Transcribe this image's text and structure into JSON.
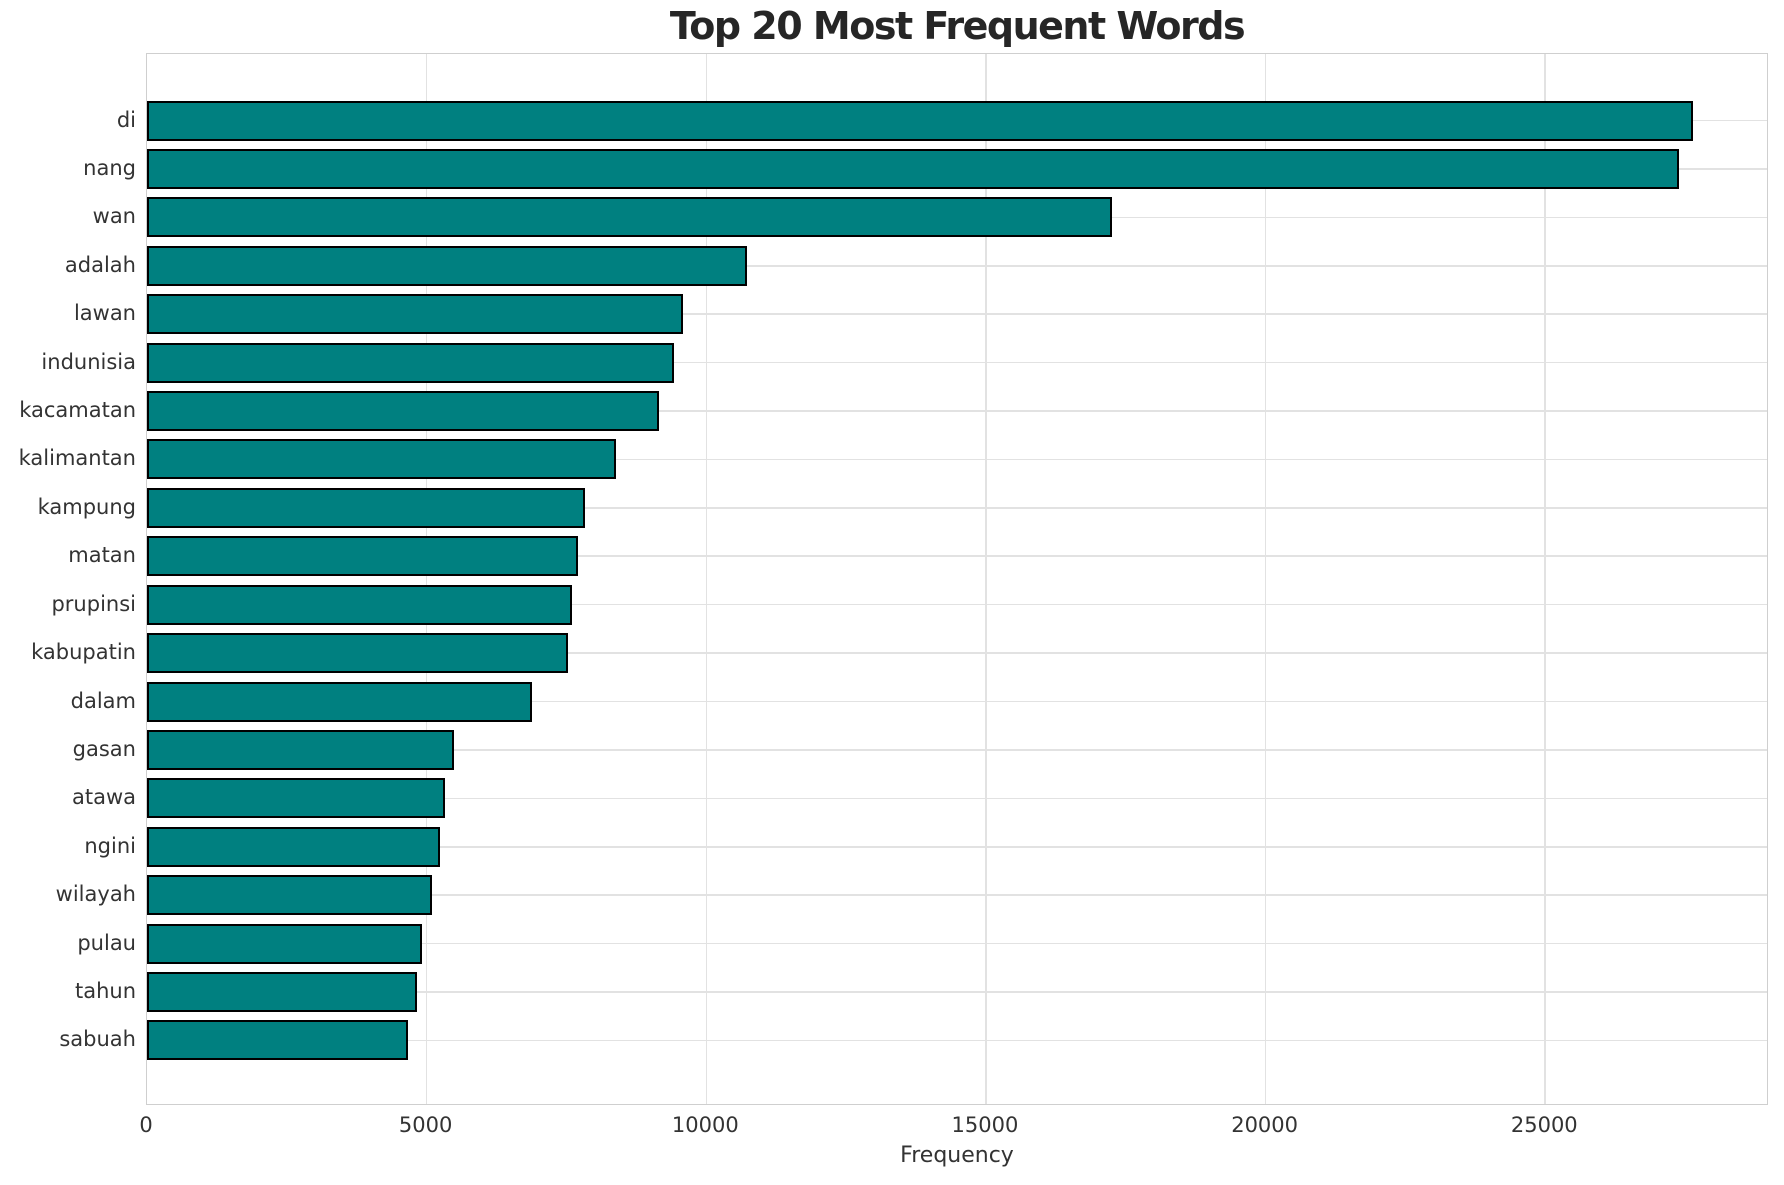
{
  "chart_data": {
    "type": "bar",
    "orientation": "horizontal",
    "title": "Top 20 Most Frequent Words",
    "xlabel": "Frequency",
    "ylabel": "",
    "categories": [
      "di",
      "nang",
      "wan",
      "adalah",
      "lawan",
      "indunisia",
      "kacamatan",
      "kalimantan",
      "kampung",
      "matan",
      "prupinsi",
      "kabupatin",
      "dalam",
      "gasan",
      "atawa",
      "ngini",
      "wilayah",
      "pulau",
      "tahun",
      "sabuah"
    ],
    "values": [
      27650,
      27390,
      17250,
      10720,
      9580,
      9420,
      9150,
      8380,
      7830,
      7710,
      7590,
      7520,
      6880,
      5490,
      5320,
      5230,
      5090,
      4910,
      4820,
      4660
    ],
    "xlim": [
      0,
      29000
    ],
    "xticks": [
      0,
      5000,
      10000,
      15000,
      20000,
      25000
    ],
    "grid": true,
    "legend": "none",
    "colors": {
      "bar_fill": "#008080",
      "bar_edge": "#000000",
      "gridline": "#e2e2e2",
      "spine": "#cfcfcf",
      "title_text": "#262626",
      "tick_text": "#333333",
      "background": "#ffffff"
    }
  }
}
